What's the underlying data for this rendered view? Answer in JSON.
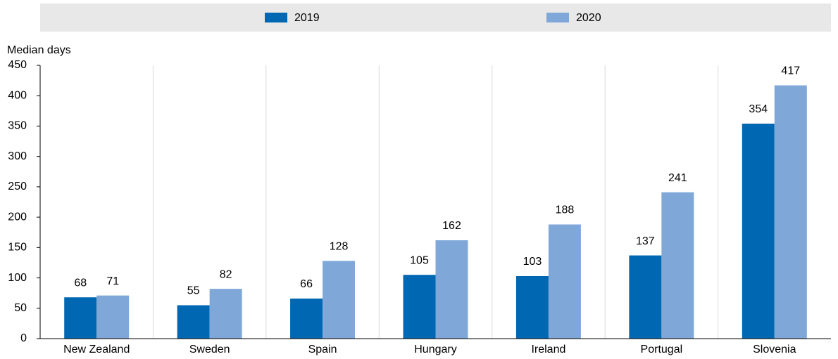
{
  "chart_data": {
    "type": "bar",
    "y_label": "Median days",
    "categories": [
      "New Zealand",
      "Sweden",
      "Spain",
      "Hungary",
      "Ireland",
      "Portugal",
      "Slovenia"
    ],
    "series": [
      {
        "name": "2019",
        "color": "#0068b2",
        "values": [
          68,
          55,
          66,
          105,
          103,
          137,
          354
        ]
      },
      {
        "name": "2020",
        "color": "#7fa8d9",
        "values": [
          71,
          82,
          128,
          162,
          188,
          241,
          417
        ]
      }
    ],
    "ylim": [
      0,
      450
    ],
    "yticks": [
      0,
      50,
      100,
      150,
      200,
      250,
      300,
      350,
      400,
      450
    ],
    "legend": "top",
    "data_labels": true
  }
}
